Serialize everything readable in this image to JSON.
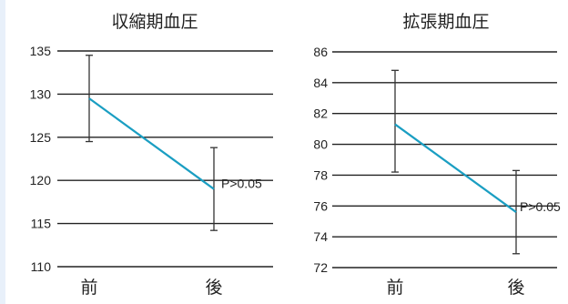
{
  "chart_data": [
    {
      "type": "line",
      "title": "収縮期血圧",
      "categories": [
        "前",
        "後"
      ],
      "series": [
        {
          "values": [
            129.5,
            119
          ],
          "error_low": [
            124.5,
            114.2
          ],
          "error_high": [
            134.5,
            123.8
          ],
          "color": "#1a9ec2"
        }
      ],
      "ylim": [
        110,
        135
      ],
      "yticks": [
        110,
        115,
        120,
        125,
        130,
        135
      ],
      "grid": true,
      "annotation": "P>0.05"
    },
    {
      "type": "line",
      "title": "拡張期血圧",
      "categories": [
        "前",
        "後"
      ],
      "series": [
        {
          "values": [
            81.3,
            75.6
          ],
          "error_low": [
            78.2,
            72.9
          ],
          "error_high": [
            84.8,
            78.3
          ],
          "color": "#1a9ec2"
        }
      ],
      "ylim": [
        72,
        86
      ],
      "yticks": [
        72,
        74,
        76,
        78,
        80,
        82,
        84,
        86
      ],
      "grid": true,
      "annotation": "P>0.05"
    }
  ]
}
